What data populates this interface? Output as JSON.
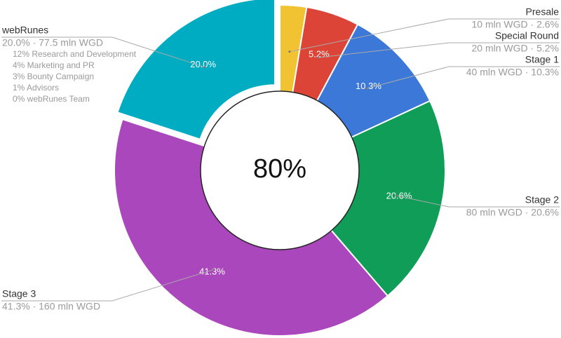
{
  "chart_data": {
    "type": "pie",
    "donut": true,
    "center_label": "80%",
    "categories": [
      "Presale",
      "Special Round",
      "Stage 1",
      "Stage 2",
      "Stage 3",
      "webRunes"
    ],
    "values": [
      2.6,
      5.2,
      10.3,
      20.6,
      41.3,
      20.0
    ],
    "value_labels": [
      null,
      "5.2%",
      "10.3%",
      "20.6%",
      "41.3%",
      "20.0%"
    ],
    "details": [
      "10 mln WGD · 2.6%",
      "20 mln WGD · 5.2%",
      "40 mln WGD · 10.3%",
      "80 mln WGD · 20.6%",
      "41.3% · 160 mln WGD",
      "20.0% · 77.5 mln WGD"
    ],
    "colors": [
      "#f1c232",
      "#db4437",
      "#3c78d8",
      "#0f9d58",
      "#ab47bc",
      "#00acc1"
    ],
    "breakdown": [
      "12% Research and Development",
      "4% Marketing and PR",
      "3% Bounty Campaign",
      "1% Advisors",
      "0% webRunes Team"
    ]
  }
}
